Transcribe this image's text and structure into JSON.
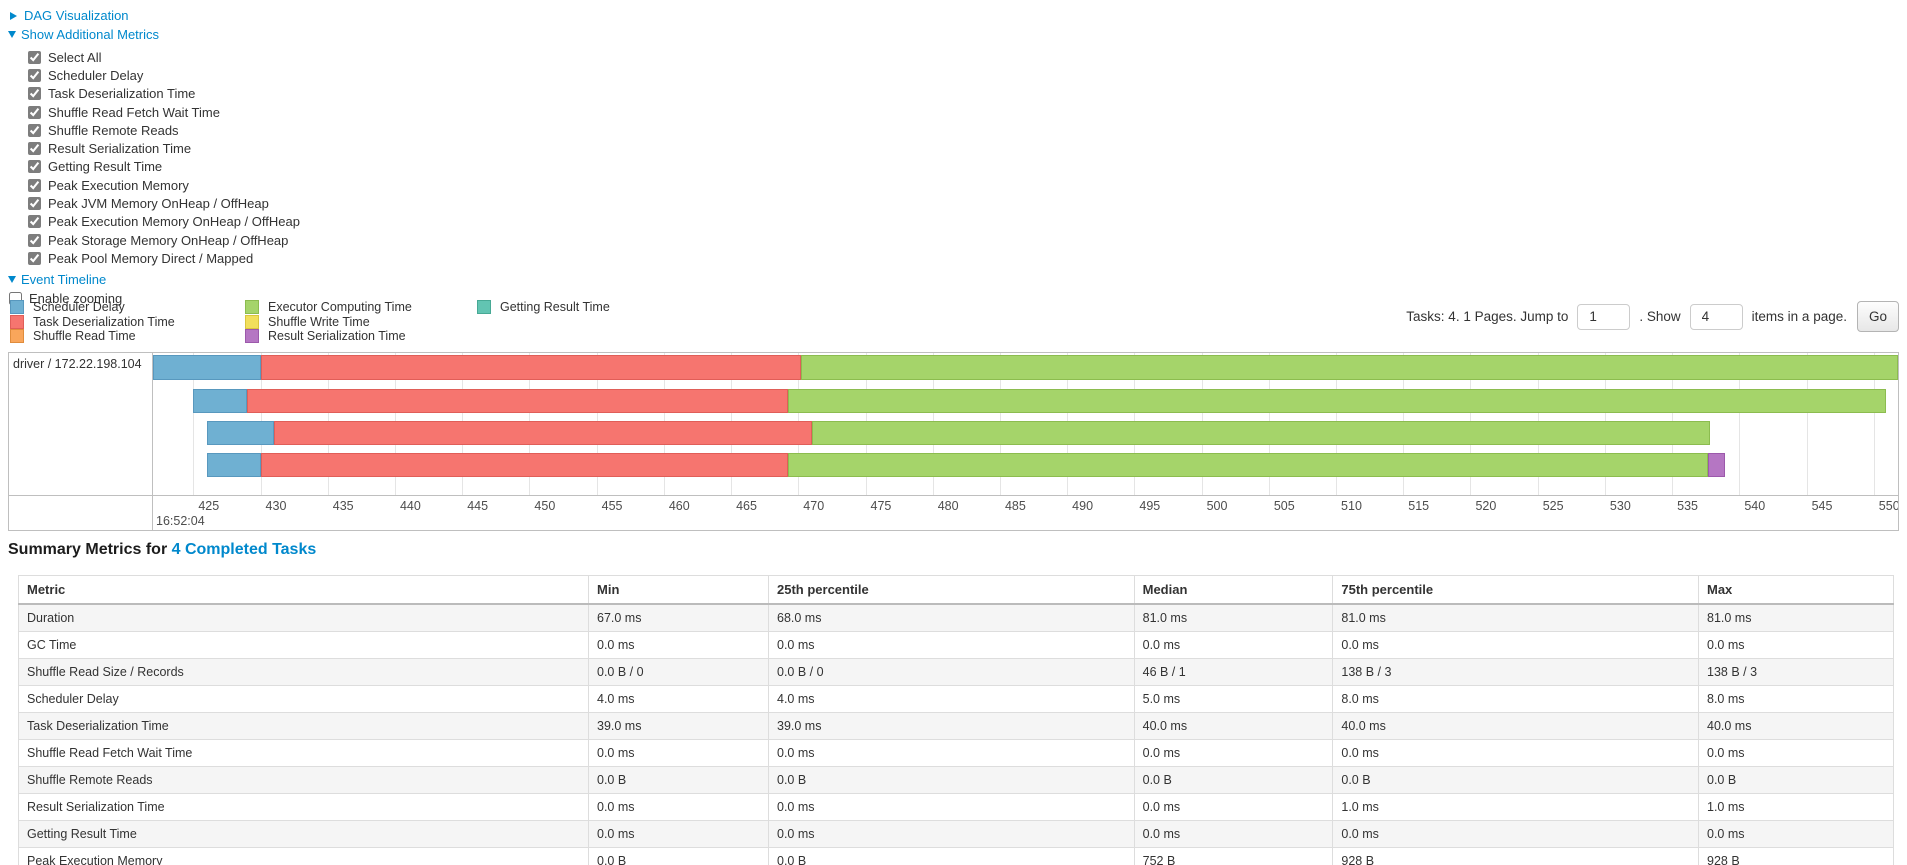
{
  "colors": {
    "link": "#0088cc",
    "scheduler": {
      "fill": "#6FB0D2",
      "border": "#5898BE"
    },
    "deserialization": {
      "fill": "#F6756F",
      "border": "#E05E58"
    },
    "shuffle_read": {
      "fill": "#F9A65B",
      "border": "#E08C3C"
    },
    "computing": {
      "fill": "#A5D46A",
      "border": "#8CBC4F"
    },
    "shuffle_write": {
      "fill": "#F2DF5C",
      "border": "#D9C53E"
    },
    "result_serialization": {
      "fill": "#B576C3",
      "border": "#9C59AB"
    },
    "getting_result": {
      "fill": "#62C4B2",
      "border": "#47A995"
    }
  },
  "controls": {
    "dag_label": "DAG Visualization",
    "metrics_label": "Show Additional Metrics",
    "metric_items": [
      "Select All",
      "Scheduler Delay",
      "Task Deserialization Time",
      "Shuffle Read Fetch Wait Time",
      "Shuffle Remote Reads",
      "Result Serialization Time",
      "Getting Result Time",
      "Peak Execution Memory",
      "Peak JVM Memory OnHeap / OffHeap",
      "Peak Execution Memory OnHeap / OffHeap",
      "Peak Storage Memory OnHeap / OffHeap",
      "Peak Pool Memory Direct / Mapped"
    ],
    "event_timeline_label": "Event Timeline",
    "enable_zooming_label": "Enable zooming"
  },
  "legend": {
    "columns": [
      [
        {
          "label": "Scheduler Delay",
          "kind": "scheduler"
        },
        {
          "label": "Task Deserialization Time",
          "kind": "deserialization"
        },
        {
          "label": "Shuffle Read Time",
          "kind": "shuffle_read"
        }
      ],
      [
        {
          "label": "Executor Computing Time",
          "kind": "computing"
        },
        {
          "label": "Shuffle Write Time",
          "kind": "shuffle_write"
        },
        {
          "label": "Result Serialization Time",
          "kind": "result_serialization"
        }
      ],
      [
        {
          "label": "Getting Result Time",
          "kind": "getting_result"
        }
      ]
    ]
  },
  "pagination": {
    "prefix": "Tasks: 4. 1 Pages. Jump to",
    "jump_value": "1",
    "mid": ". Show",
    "show_value": "4",
    "suffix": "items in a page.",
    "go_label": "Go"
  },
  "timeline": {
    "group_label": "driver / 172.22.198.104",
    "major_label": "16:52:04",
    "axis": {
      "start": 422.0,
      "end": 551.8
    },
    "ticks": [
      425,
      430,
      435,
      440,
      445,
      450,
      455,
      460,
      465,
      470,
      475,
      480,
      485,
      490,
      495,
      500,
      505,
      510,
      515,
      520,
      525,
      530,
      535,
      540,
      545,
      550
    ],
    "rows": [
      {
        "segments": [
          {
            "kind": "scheduler",
            "start": 422.0,
            "end": 430.0
          },
          {
            "kind": "deserialization",
            "start": 430.0,
            "end": 470.2
          },
          {
            "kind": "computing",
            "start": 470.2,
            "end": 551.8
          }
        ]
      },
      {
        "segments": [
          {
            "kind": "scheduler",
            "start": 425.0,
            "end": 429.0
          },
          {
            "kind": "deserialization",
            "start": 429.0,
            "end": 469.2
          },
          {
            "kind": "computing",
            "start": 469.2,
            "end": 550.9
          }
        ]
      },
      {
        "segments": [
          {
            "kind": "scheduler",
            "start": 426.0,
            "end": 431.0
          },
          {
            "kind": "deserialization",
            "start": 431.0,
            "end": 471.0
          },
          {
            "kind": "computing",
            "start": 471.0,
            "end": 537.8
          }
        ]
      },
      {
        "segments": [
          {
            "kind": "scheduler",
            "start": 426.0,
            "end": 430.0
          },
          {
            "kind": "deserialization",
            "start": 430.0,
            "end": 469.2
          },
          {
            "kind": "computing",
            "start": 469.2,
            "end": 537.7
          },
          {
            "kind": "result_serialization",
            "start": 537.7,
            "end": 538.9
          }
        ]
      }
    ]
  },
  "summary": {
    "title_prefix": "Summary Metrics for ",
    "title_link": "4 Completed Tasks",
    "columns": [
      "Metric",
      "Min",
      "25th percentile",
      "Median",
      "75th percentile",
      "Max"
    ],
    "rows": [
      {
        "metric": "Duration",
        "values": [
          "67.0 ms",
          "68.0 ms",
          "81.0 ms",
          "81.0 ms",
          "81.0 ms"
        ]
      },
      {
        "metric": "GC Time",
        "values": [
          "0.0 ms",
          "0.0 ms",
          "0.0 ms",
          "0.0 ms",
          "0.0 ms"
        ]
      },
      {
        "metric": "Shuffle Read Size / Records",
        "values": [
          "0.0 B / 0",
          "0.0 B / 0",
          "46 B / 1",
          "138 B / 3",
          "138 B / 3"
        ]
      },
      {
        "metric": "Scheduler Delay",
        "values": [
          "4.0 ms",
          "4.0 ms",
          "5.0 ms",
          "8.0 ms",
          "8.0 ms"
        ]
      },
      {
        "metric": "Task Deserialization Time",
        "values": [
          "39.0 ms",
          "39.0 ms",
          "40.0 ms",
          "40.0 ms",
          "40.0 ms"
        ]
      },
      {
        "metric": "Shuffle Read Fetch Wait Time",
        "values": [
          "0.0 ms",
          "0.0 ms",
          "0.0 ms",
          "0.0 ms",
          "0.0 ms"
        ]
      },
      {
        "metric": "Shuffle Remote Reads",
        "values": [
          "0.0 B",
          "0.0 B",
          "0.0 B",
          "0.0 B",
          "0.0 B"
        ]
      },
      {
        "metric": "Result Serialization Time",
        "values": [
          "0.0 ms",
          "0.0 ms",
          "0.0 ms",
          "1.0 ms",
          "1.0 ms"
        ]
      },
      {
        "metric": "Getting Result Time",
        "values": [
          "0.0 ms",
          "0.0 ms",
          "0.0 ms",
          "0.0 ms",
          "0.0 ms"
        ]
      },
      {
        "metric": "Peak Execution Memory",
        "values": [
          "0.0 B",
          "0.0 B",
          "752 B",
          "928 B",
          "928 B"
        ]
      }
    ]
  }
}
